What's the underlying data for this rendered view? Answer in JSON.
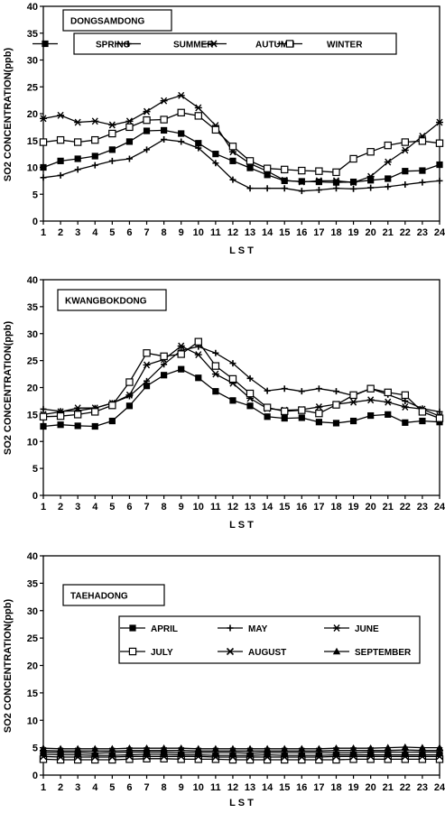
{
  "chart_data": [
    {
      "type": "line",
      "site_label": "DONGSAMDONG",
      "xlabel": "L S T",
      "ylabel": "SO2  CONCENTRATION(ppb)",
      "ylim": [
        0,
        40
      ],
      "yticks": [
        0,
        5,
        10,
        15,
        20,
        25,
        30,
        35,
        40
      ],
      "x": [
        1,
        2,
        3,
        4,
        5,
        6,
        7,
        8,
        9,
        10,
        11,
        12,
        13,
        14,
        15,
        16,
        17,
        18,
        19,
        20,
        21,
        22,
        23,
        24
      ],
      "legend_placement": "top",
      "series": [
        {
          "name": "SPRING",
          "marker": "filled-square",
          "values": [
            10,
            11.2,
            11.6,
            12.1,
            13.3,
            14.8,
            16.8,
            16.9,
            16.3,
            14.5,
            12.5,
            11.2,
            9.9,
            8.6,
            7.5,
            7.4,
            7.3,
            7.2,
            7.3,
            7.6,
            7.9,
            9.3,
            9.4,
            10.5
          ]
        },
        {
          "name": "SUMMER",
          "marker": "plus",
          "values": [
            8.1,
            8.5,
            9.6,
            10.4,
            11.2,
            11.6,
            13.3,
            15.2,
            14.8,
            13.6,
            10.8,
            7.7,
            6.1,
            6.1,
            6.1,
            5.6,
            5.8,
            6.1,
            6.0,
            6.2,
            6.4,
            6.8,
            7.2,
            7.5
          ]
        },
        {
          "name": "AUTUMN",
          "marker": "asterisk",
          "values": [
            19.1,
            19.7,
            18.4,
            18.6,
            17.9,
            18.6,
            20.4,
            22.4,
            23.4,
            21.1,
            17.8,
            12.9,
            10.7,
            9.3,
            7.6,
            7.3,
            7.5,
            7.5,
            7.2,
            8.3,
            11.0,
            13.2,
            15.8,
            18.4
          ]
        },
        {
          "name": "WINTER",
          "marker": "open-square",
          "values": [
            14.7,
            15.1,
            14.7,
            15.1,
            16.3,
            17.5,
            18.8,
            18.9,
            20.2,
            19.6,
            17.0,
            13.9,
            11.2,
            9.8,
            9.6,
            9.4,
            9.3,
            9.1,
            11.6,
            12.9,
            14.1,
            14.7,
            14.9,
            14.5
          ]
        }
      ]
    },
    {
      "type": "line",
      "site_label": "KWANGBOKDONG",
      "xlabel": "L S T",
      "ylabel": "SO2  CONCENTRATION(ppb)",
      "ylim": [
        0,
        40
      ],
      "yticks": [
        0,
        5,
        10,
        15,
        20,
        25,
        30,
        35,
        40
      ],
      "x": [
        1,
        2,
        3,
        4,
        5,
        6,
        7,
        8,
        9,
        10,
        11,
        12,
        13,
        14,
        15,
        16,
        17,
        18,
        19,
        20,
        21,
        22,
        23,
        24
      ],
      "series": [
        {
          "name": "SPRING",
          "marker": "filled-square",
          "values": [
            12.8,
            13.1,
            12.9,
            12.8,
            13.8,
            16.6,
            20.3,
            22.3,
            23.4,
            21.8,
            19.3,
            17.6,
            16.6,
            14.6,
            14.3,
            14.4,
            13.6,
            13.4,
            13.8,
            14.8,
            15.0,
            13.5,
            13.8,
            13.6
          ]
        },
        {
          "name": "SUMMER",
          "marker": "plus",
          "values": [
            16.0,
            15.6,
            15.7,
            16.2,
            17.1,
            18.4,
            21.2,
            24.3,
            26.9,
            27.6,
            26.4,
            24.5,
            21.7,
            19.4,
            19.8,
            19.3,
            19.8,
            19.3,
            18.5,
            19.8,
            18.7,
            17.5,
            16.1,
            15.5
          ]
        },
        {
          "name": "AUTUMN",
          "marker": "asterisk",
          "values": [
            15.0,
            15.5,
            16.2,
            16.2,
            17.1,
            18.6,
            24.2,
            25.2,
            27.7,
            26.1,
            22.5,
            20.8,
            18.0,
            16.1,
            15.8,
            15.9,
            16.4,
            16.9,
            17.3,
            17.7,
            17.3,
            16.4,
            16.0,
            14.7
          ]
        },
        {
          "name": "WINTER",
          "marker": "open-square",
          "values": [
            14.6,
            14.7,
            15.0,
            15.5,
            16.7,
            21.0,
            26.4,
            25.8,
            26.2,
            28.5,
            24.0,
            21.6,
            18.9,
            16.3,
            15.6,
            15.8,
            15.2,
            16.8,
            18.6,
            19.8,
            19.1,
            18.6,
            15.5,
            14.3
          ]
        }
      ]
    },
    {
      "type": "line",
      "site_label": "TAEHADONG",
      "xlabel": "L S T",
      "ylabel": "SO2  CONCENTRATION(ppb)",
      "ylim": [
        0,
        40
      ],
      "yticks": [
        0,
        5,
        10,
        15,
        20,
        25,
        30,
        35,
        40
      ],
      "x": [
        1,
        2,
        3,
        4,
        5,
        6,
        7,
        8,
        9,
        10,
        11,
        12,
        13,
        14,
        15,
        16,
        17,
        18,
        19,
        20,
        21,
        22,
        23,
        24
      ],
      "legend_placement": "middle",
      "series": [
        {
          "name": "APRIL",
          "marker": "filled-square",
          "values": [
            3.8,
            3.7,
            3.7,
            3.6,
            3.6,
            3.7,
            3.8,
            3.8,
            3.7,
            3.7,
            3.6,
            3.6,
            3.6,
            3.7,
            3.6,
            3.6,
            3.6,
            3.7,
            3.7,
            3.7,
            3.7,
            3.7,
            3.7,
            3.7
          ]
        },
        {
          "name": "MAY",
          "marker": "plus",
          "values": [
            4.2,
            4.1,
            4.1,
            4.0,
            4.1,
            4.2,
            4.2,
            4.2,
            4.1,
            4.1,
            4.1,
            4.1,
            4.0,
            4.1,
            4.1,
            4.1,
            4.1,
            4.1,
            4.1,
            4.2,
            4.2,
            4.2,
            4.2,
            4.2
          ]
        },
        {
          "name": "JUNE",
          "marker": "asterisk",
          "values": [
            4.5,
            4.4,
            4.4,
            4.4,
            4.4,
            4.5,
            4.5,
            4.5,
            4.5,
            4.4,
            4.4,
            4.4,
            4.4,
            4.4,
            4.4,
            4.4,
            4.4,
            4.5,
            4.5,
            4.5,
            4.5,
            4.6,
            4.5,
            4.5
          ]
        },
        {
          "name": "JULY",
          "marker": "open-square",
          "values": [
            2.9,
            2.8,
            2.8,
            2.8,
            2.8,
            2.9,
            3.0,
            3.0,
            2.9,
            2.9,
            2.9,
            2.8,
            2.8,
            2.8,
            2.8,
            2.8,
            2.8,
            2.8,
            2.9,
            2.9,
            2.9,
            2.9,
            2.9,
            2.9
          ]
        },
        {
          "name": "AUGUST",
          "marker": "x",
          "values": [
            3.4,
            3.3,
            3.3,
            3.3,
            3.3,
            3.4,
            3.4,
            3.4,
            3.4,
            3.4,
            3.3,
            3.3,
            3.3,
            3.3,
            3.3,
            3.3,
            3.3,
            3.4,
            3.4,
            3.4,
            3.4,
            3.4,
            3.4,
            3.4
          ]
        },
        {
          "name": "SEPTEMBER",
          "marker": "filled-triangle",
          "values": [
            4.9,
            4.8,
            4.8,
            4.8,
            4.8,
            4.9,
            4.9,
            4.9,
            4.9,
            4.8,
            4.8,
            4.8,
            4.8,
            4.8,
            4.8,
            4.8,
            4.8,
            4.9,
            4.9,
            4.9,
            5.0,
            5.1,
            5.0,
            5.0
          ]
        }
      ]
    }
  ]
}
